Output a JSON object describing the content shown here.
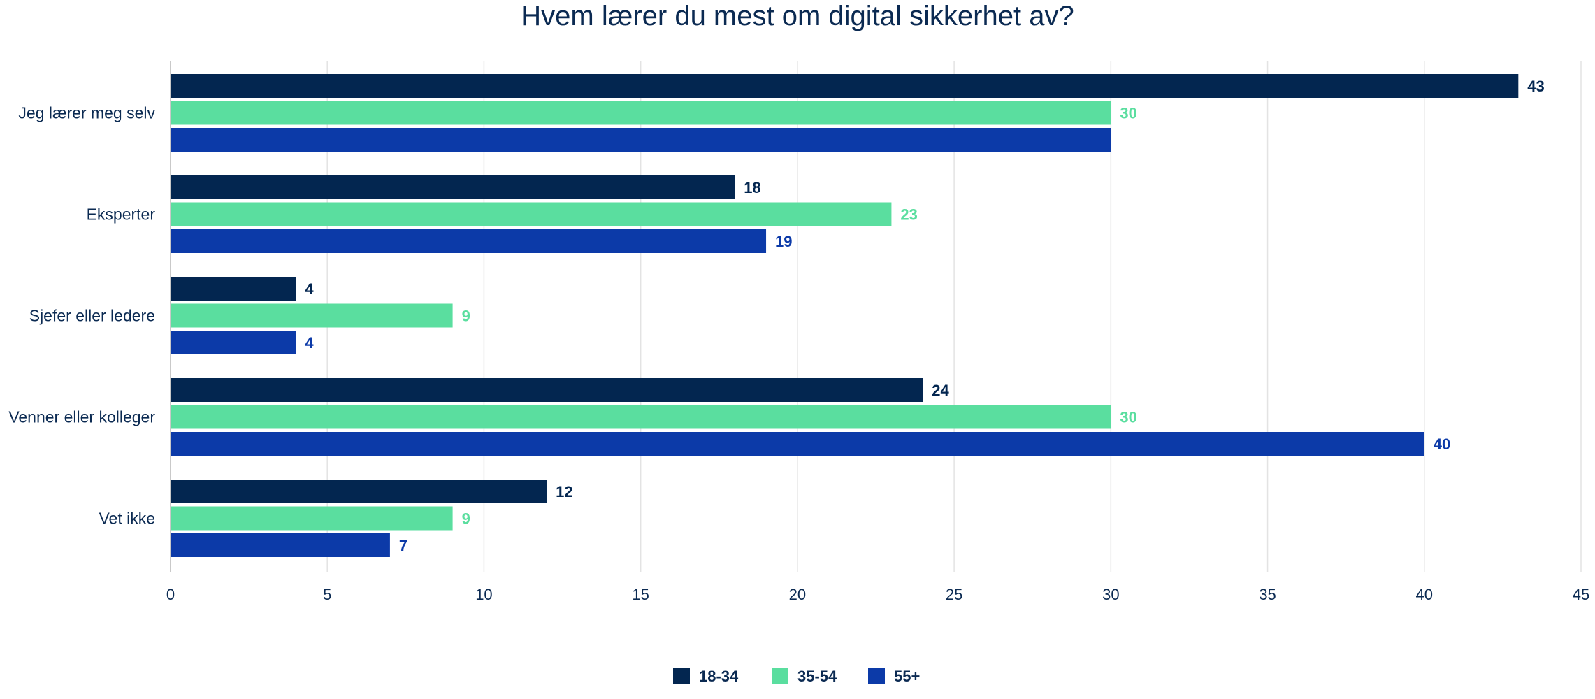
{
  "chart_data": {
    "type": "bar",
    "orientation": "horizontal",
    "title": "Hvem lærer du mest om digital sikkerhet av?",
    "categories": [
      "Jeg lærer meg selv",
      "Eksperter",
      "Sjefer eller ledere",
      "Venner eller kolleger",
      "Vet ikke"
    ],
    "series": [
      {
        "name": "18-34",
        "color": "#032650",
        "values": [
          43,
          18,
          4,
          24,
          12
        ],
        "labels": [
          "43",
          "18",
          "4",
          "24",
          "12"
        ]
      },
      {
        "name": "35-54",
        "color": "#5ade9f",
        "values": [
          30,
          23,
          9,
          30,
          9
        ],
        "labels": [
          "30",
          "23",
          "9",
          "30",
          "9"
        ]
      },
      {
        "name": "55+",
        "color": "#0c3aa8",
        "values": [
          30,
          19,
          4,
          40,
          7
        ],
        "labels": [
          "",
          "19",
          "4",
          "40",
          "7"
        ]
      }
    ],
    "xlim": [
      0,
      45
    ],
    "xticks": [
      "0",
      "5",
      "10",
      "15",
      "20",
      "25",
      "30",
      "35",
      "40",
      "45"
    ],
    "grid": true,
    "legend_position": "bottom-center"
  }
}
